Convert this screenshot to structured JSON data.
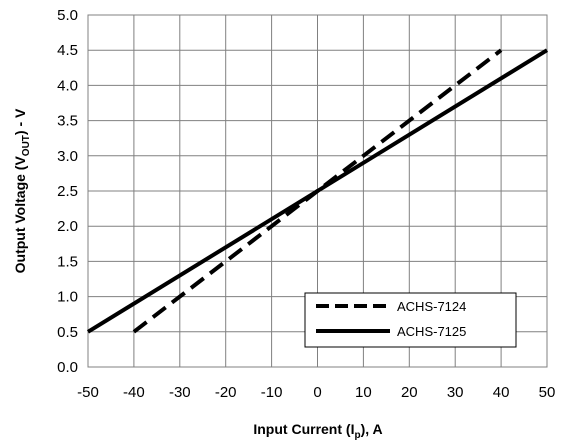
{
  "chart_data": {
    "type": "line",
    "xlabel": {
      "main": "Input Current (I",
      "sub": "p",
      "tail": "), A"
    },
    "ylabel": {
      "main": "Output Voltage (V",
      "sub": "OUT",
      "tail": ") - V"
    },
    "xlim": [
      -50,
      50
    ],
    "ylim": [
      0,
      5
    ],
    "xticks": [
      -50,
      -40,
      -30,
      -20,
      -10,
      0,
      10,
      20,
      30,
      40,
      50
    ],
    "yticks": [
      0.0,
      0.5,
      1.0,
      1.5,
      2.0,
      2.5,
      3.0,
      3.5,
      4.0,
      4.5,
      5.0
    ],
    "grid": true,
    "legend_position": "bottom-right",
    "series": [
      {
        "name": "ACHS-7124",
        "style": "dashed",
        "color": "#000000",
        "x": [
          -40,
          40
        ],
        "y": [
          0.5,
          4.5
        ]
      },
      {
        "name": "ACHS-7125",
        "style": "solid",
        "color": "#000000",
        "x": [
          -50,
          50
        ],
        "y": [
          0.5,
          4.5
        ]
      }
    ]
  }
}
